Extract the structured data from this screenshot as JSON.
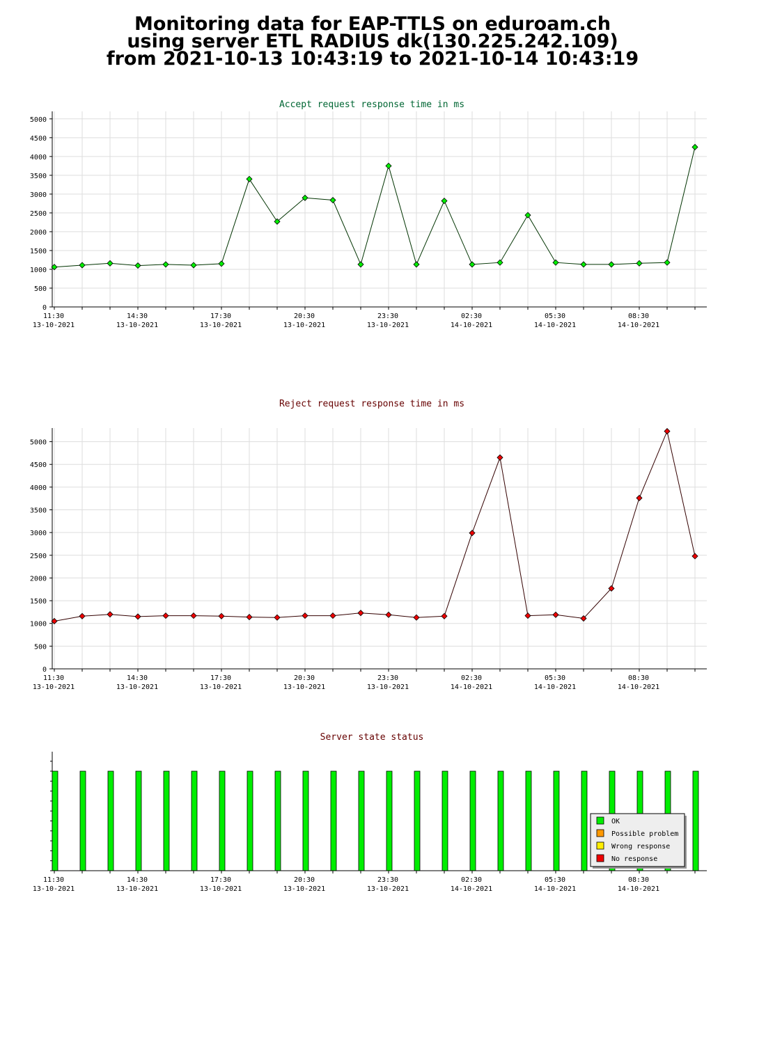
{
  "page": {
    "title_lines": [
      "Monitoring data for EAP-TTLS on eduroam.ch",
      "using server ETL RADIUS dk(130.225.242.109)",
      "from 2021-10-13 10:43:19 to 2021-10-14 10:43:19"
    ]
  },
  "colors": {
    "accept_title": "#006633",
    "reject_title": "#660000",
    "status_title": "#660000",
    "accept_marker": "#00ee00",
    "reject_marker": "#ee0000",
    "grid": "#dddddd",
    "ok": "#00ee00",
    "possible_problem": "#ff9900",
    "wrong_response": "#ffee00",
    "no_response": "#ee0000"
  },
  "chart_data": [
    {
      "type": "line",
      "title": "Accept request response time in ms",
      "xlabel": "",
      "ylabel": "",
      "ylim": [
        0,
        5200
      ],
      "yticks": [
        0,
        500,
        1000,
        1500,
        2000,
        2500,
        3000,
        3500,
        4000,
        4500,
        5000
      ],
      "x_tick_labels": [
        [
          "11:30",
          "13-10-2021"
        ],
        [
          "14:30",
          "13-10-2021"
        ],
        [
          "17:30",
          "13-10-2021"
        ],
        [
          "20:30",
          "13-10-2021"
        ],
        [
          "23:30",
          "13-10-2021"
        ],
        [
          "02:30",
          "14-10-2021"
        ],
        [
          "05:30",
          "14-10-2021"
        ],
        [
          "08:30",
          "14-10-2021"
        ]
      ],
      "grid": true,
      "x": [
        "11:30",
        "12:30",
        "13:30",
        "14:30",
        "15:30",
        "16:30",
        "17:30",
        "18:30",
        "19:30",
        "20:30",
        "21:30",
        "22:30",
        "23:30",
        "00:30",
        "01:30",
        "02:30",
        "03:30",
        "04:30",
        "05:30",
        "06:30",
        "07:30",
        "08:30",
        "09:30",
        "10:30"
      ],
      "series": [
        {
          "values": [
            1060,
            1110,
            1160,
            1100,
            1130,
            1110,
            1150,
            3400,
            2270,
            2900,
            2840,
            1130,
            3750,
            1130,
            2820,
            1130,
            1180,
            2440,
            1180,
            1130,
            1130,
            1160,
            1180,
            4250
          ]
        }
      ]
    },
    {
      "type": "line",
      "title": "Reject request response time in ms",
      "xlabel": "",
      "ylabel": "",
      "ylim": [
        0,
        5300
      ],
      "yticks": [
        0,
        500,
        1000,
        1500,
        2000,
        2500,
        3000,
        3500,
        4000,
        4500,
        5000
      ],
      "x_tick_labels": [
        [
          "11:30",
          "13-10-2021"
        ],
        [
          "14:30",
          "13-10-2021"
        ],
        [
          "17:30",
          "13-10-2021"
        ],
        [
          "20:30",
          "13-10-2021"
        ],
        [
          "23:30",
          "13-10-2021"
        ],
        [
          "02:30",
          "14-10-2021"
        ],
        [
          "05:30",
          "14-10-2021"
        ],
        [
          "08:30",
          "14-10-2021"
        ]
      ],
      "grid": true,
      "x": [
        "11:30",
        "12:30",
        "13:30",
        "14:30",
        "15:30",
        "16:30",
        "17:30",
        "18:30",
        "19:30",
        "20:30",
        "21:30",
        "22:30",
        "23:30",
        "00:30",
        "01:30",
        "02:30",
        "03:30",
        "04:30",
        "05:30",
        "06:30",
        "07:30",
        "08:30",
        "09:30",
        "10:30"
      ],
      "series": [
        {
          "values": [
            1050,
            1160,
            1200,
            1150,
            1170,
            1170,
            1160,
            1140,
            1130,
            1170,
            1170,
            1230,
            1190,
            1130,
            1160,
            2990,
            4650,
            1170,
            1190,
            1110,
            1770,
            3760,
            5230,
            2480
          ]
        }
      ]
    },
    {
      "type": "bar",
      "title": "Server state status",
      "x_tick_labels": [
        [
          "11:30",
          "13-10-2021"
        ],
        [
          "14:30",
          "13-10-2021"
        ],
        [
          "17:30",
          "13-10-2021"
        ],
        [
          "20:30",
          "13-10-2021"
        ],
        [
          "23:30",
          "13-10-2021"
        ],
        [
          "02:30",
          "14-10-2021"
        ],
        [
          "05:30",
          "14-10-2021"
        ],
        [
          "08:30",
          "14-10-2021"
        ]
      ],
      "legend": [
        "OK",
        "Possible problem",
        "Wrong response",
        "No response"
      ],
      "legend_position": "bottom-right",
      "x": [
        "11:30",
        "12:30",
        "13:30",
        "14:30",
        "15:30",
        "16:30",
        "17:30",
        "18:30",
        "19:30",
        "20:30",
        "21:30",
        "22:30",
        "23:30",
        "00:30",
        "01:30",
        "02:30",
        "03:30",
        "04:30",
        "05:30",
        "06:30",
        "07:30",
        "08:30",
        "09:30",
        "10:30"
      ],
      "states": [
        "OK",
        "OK",
        "OK",
        "OK",
        "OK",
        "OK",
        "OK",
        "OK",
        "OK",
        "OK",
        "OK",
        "OK",
        "OK",
        "OK",
        "OK",
        "OK",
        "OK",
        "OK",
        "OK",
        "OK",
        "OK",
        "OK",
        "OK",
        "OK"
      ]
    }
  ]
}
